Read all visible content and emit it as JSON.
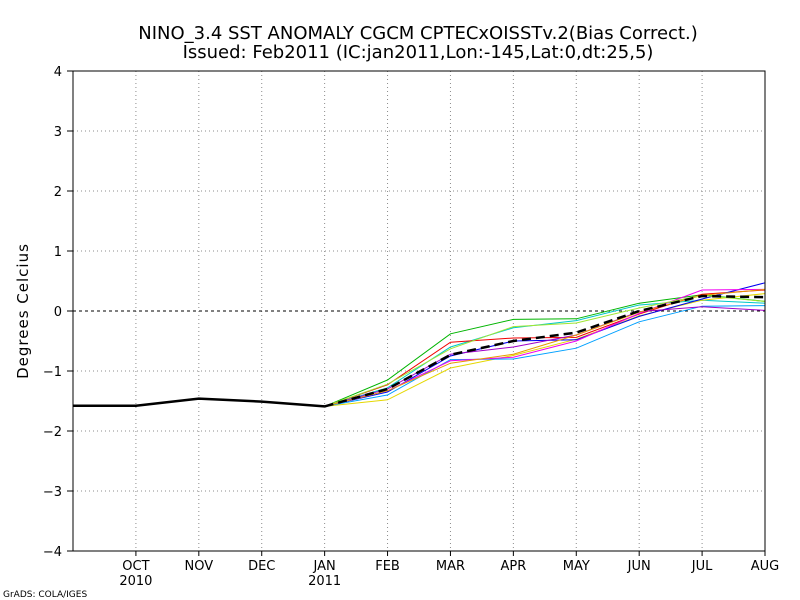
{
  "chart_data": {
    "type": "line",
    "title": "NINO_3.4  SST  ANOMALY  CGCM  CPTECxOISSTv.2(Bias  Correct.)",
    "subtitle": "Issued:   Feb2011  (IC:jan2011,Lon:-145,Lat:0,dt:25,5)",
    "xlabel": "",
    "ylabel": "Degrees  Celcius",
    "ylim": [
      -4,
      4
    ],
    "yticks": [
      -4,
      -3,
      -2,
      -1,
      0,
      1,
      2,
      3,
      4
    ],
    "ytick_labels": [
      "−4",
      "−3",
      "−2",
      "−1",
      "0",
      "1",
      "2",
      "3",
      "4"
    ],
    "xlim": [
      0,
      11
    ],
    "x_ticks": [
      {
        "pos": 1,
        "label": "OCT",
        "year": "2010"
      },
      {
        "pos": 2,
        "label": "NOV",
        "year": ""
      },
      {
        "pos": 3,
        "label": "DEC",
        "year": ""
      },
      {
        "pos": 4,
        "label": "JAN",
        "year": "2011"
      },
      {
        "pos": 5,
        "label": "FEB",
        "year": ""
      },
      {
        "pos": 6,
        "label": "MAR",
        "year": ""
      },
      {
        "pos": 7,
        "label": "APR",
        "year": ""
      },
      {
        "pos": 8,
        "label": "MAY",
        "year": ""
      },
      {
        "pos": 9,
        "label": "JUN",
        "year": ""
      },
      {
        "pos": 10,
        "label": "JUL",
        "year": ""
      },
      {
        "pos": 11,
        "label": "AUG",
        "year": ""
      }
    ],
    "grid": true,
    "zero_line": true,
    "observed": {
      "name": "observed",
      "color": "#000000",
      "x": [
        0,
        1,
        2,
        3,
        4
      ],
      "values": [
        -1.58,
        -1.58,
        -1.46,
        -1.51,
        -1.59
      ]
    },
    "ensemble_mean": {
      "name": "ensemble mean",
      "color": "#000000",
      "x": [
        4,
        5,
        6,
        7,
        8,
        9,
        10,
        11
      ],
      "values": [
        -1.59,
        -1.3,
        -0.73,
        -0.5,
        -0.36,
        0.0,
        0.25,
        0.23
      ]
    },
    "members": [
      {
        "name": "member-1",
        "color": "#00b400",
        "values": [
          -1.59,
          -1.15,
          -0.38,
          -0.14,
          -0.13,
          0.13,
          0.27,
          0.16
        ]
      },
      {
        "name": "member-2",
        "color": "#00c8c8",
        "values": [
          -1.59,
          -1.28,
          -0.6,
          -0.28,
          -0.16,
          0.1,
          0.18,
          0.13
        ]
      },
      {
        "name": "member-3",
        "color": "#f00000",
        "values": [
          -1.59,
          -1.23,
          -0.52,
          -0.45,
          -0.44,
          -0.05,
          0.28,
          0.35
        ]
      },
      {
        "name": "member-4",
        "color": "#e5d700",
        "values": [
          -1.59,
          -1.48,
          -0.95,
          -0.74,
          -0.47,
          -0.08,
          0.18,
          0.29
        ]
      },
      {
        "name": "member-5",
        "color": "#0000f0",
        "values": [
          -1.59,
          -1.35,
          -0.75,
          -0.5,
          -0.48,
          -0.09,
          0.2,
          0.47
        ]
      },
      {
        "name": "member-6",
        "color": "#00a0ff",
        "values": [
          -1.59,
          -1.4,
          -0.81,
          -0.8,
          -0.62,
          -0.18,
          0.08,
          0.09
        ]
      },
      {
        "name": "member-7",
        "color": "#f000f0",
        "values": [
          -1.59,
          -1.33,
          -0.83,
          -0.77,
          -0.5,
          -0.04,
          0.35,
          0.36
        ]
      },
      {
        "name": "member-8",
        "color": "#a000c8",
        "values": [
          -1.59,
          -1.3,
          -0.72,
          -0.6,
          -0.4,
          -0.01,
          0.07,
          0.01
        ]
      },
      {
        "name": "member-9",
        "color": "#e69b00",
        "values": [
          -1.59,
          -1.33,
          -0.87,
          -0.72,
          -0.4,
          -0.02,
          0.26,
          0.36
        ]
      },
      {
        "name": "member-10",
        "color": "#a0e632",
        "values": [
          -1.59,
          -1.22,
          -0.63,
          -0.26,
          -0.2,
          0.05,
          0.26,
          0.16
        ]
      }
    ],
    "credit": "GrADS: COLA/IGES"
  }
}
